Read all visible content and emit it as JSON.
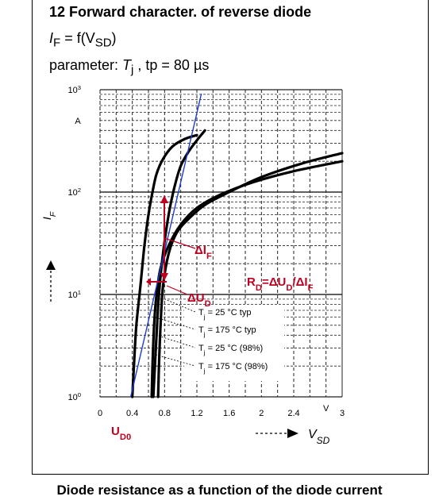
{
  "header": {
    "title": "12 Forward character. of reverse diode",
    "function_lhs": "I",
    "function_lhs_sub": "F",
    "function_mid": " = f(V",
    "function_sub": "SD",
    "function_close": ")",
    "param_prefix": "parameter: ",
    "param_tj": "T",
    "param_tj_sub": "j",
    "param_tp": " , tp = 80 µs"
  },
  "caption": "Diode resistance as a function of the diode current",
  "annotations": {
    "delta_if": "ΔI",
    "delta_if_sub": "F",
    "delta_ud": "ΔU",
    "delta_ud_sub": "D",
    "rd_formula_parts": [
      "R",
      "D",
      "=ΔU",
      "D",
      "/ΔI",
      "F"
    ],
    "ud0": "U",
    "ud0_sub": "D0",
    "colors": {
      "annotation": "#c00020",
      "tangent": "#1a3fd0",
      "curve": "#000000"
    }
  },
  "chart_data": {
    "type": "line",
    "title": "",
    "xlabel": "V",
    "xlabel_sub": "SD",
    "x_unit": "V",
    "ylabel": "I",
    "ylabel_sub": "F",
    "y_unit": "A",
    "x_scale": "linear",
    "y_scale": "log",
    "xlim": [
      0,
      3
    ],
    "ylim": [
      1,
      1000
    ],
    "x_ticks": [
      "0",
      "0.4",
      "0.8",
      "1.2",
      "1.6",
      "2",
      "2.4",
      "V",
      "3"
    ],
    "y_ticks": [
      {
        "base": "10",
        "exp": "0"
      },
      {
        "base": "10",
        "exp": "1"
      },
      {
        "base": "10",
        "exp": "2"
      },
      {
        "base": "10",
        "exp": "3"
      }
    ],
    "grid": true,
    "legend_placement": "center",
    "series": [
      {
        "name": "Tj = 25 °C typ",
        "name_parts": [
          "T",
          "j",
          " = 25 °C typ"
        ],
        "x": [
          0.66,
          0.68,
          0.7,
          0.73,
          0.78,
          0.85,
          0.92,
          1.0,
          1.1,
          1.2,
          1.3
        ],
        "y": [
          1,
          2,
          4,
          10,
          25,
          60,
          110,
          180,
          250,
          320,
          400
        ]
      },
      {
        "name": "Tj = 175 °C typ",
        "name_parts": [
          "T",
          "j",
          " = 175 °C typ"
        ],
        "x": [
          0.4,
          0.42,
          0.45,
          0.5,
          0.55,
          0.6,
          0.65,
          0.7,
          0.78,
          0.9,
          1.05,
          1.2
        ],
        "y": [
          1,
          2,
          5,
          12,
          30,
          60,
          100,
          150,
          210,
          280,
          330,
          360
        ]
      },
      {
        "name": "Tj = 25 °C (98%)",
        "name_parts": [
          "T",
          "j",
          " = 25 °C (98%)"
        ],
        "x": [
          0.72,
          0.73,
          0.75,
          0.78,
          0.85,
          0.95,
          1.1,
          1.3,
          1.6,
          2.0,
          2.5,
          3.0
        ],
        "y": [
          1,
          2,
          5,
          12,
          25,
          40,
          55,
          75,
          100,
          140,
          190,
          240
        ]
      },
      {
        "name": "Tj = 175 °C (98%)",
        "name_parts": [
          "T",
          "j",
          " = 175 °C (98%)"
        ],
        "x": [
          0.64,
          0.65,
          0.67,
          0.7,
          0.75,
          0.85,
          1.0,
          1.2,
          1.5,
          1.9,
          2.4,
          3.0
        ],
        "y": [
          1,
          2,
          5,
          10,
          18,
          30,
          48,
          70,
          95,
          125,
          160,
          200
        ]
      }
    ],
    "tangent_line": {
      "x": [
        0.38,
        1.0
      ],
      "y": [
        1,
        1000
      ]
    }
  }
}
